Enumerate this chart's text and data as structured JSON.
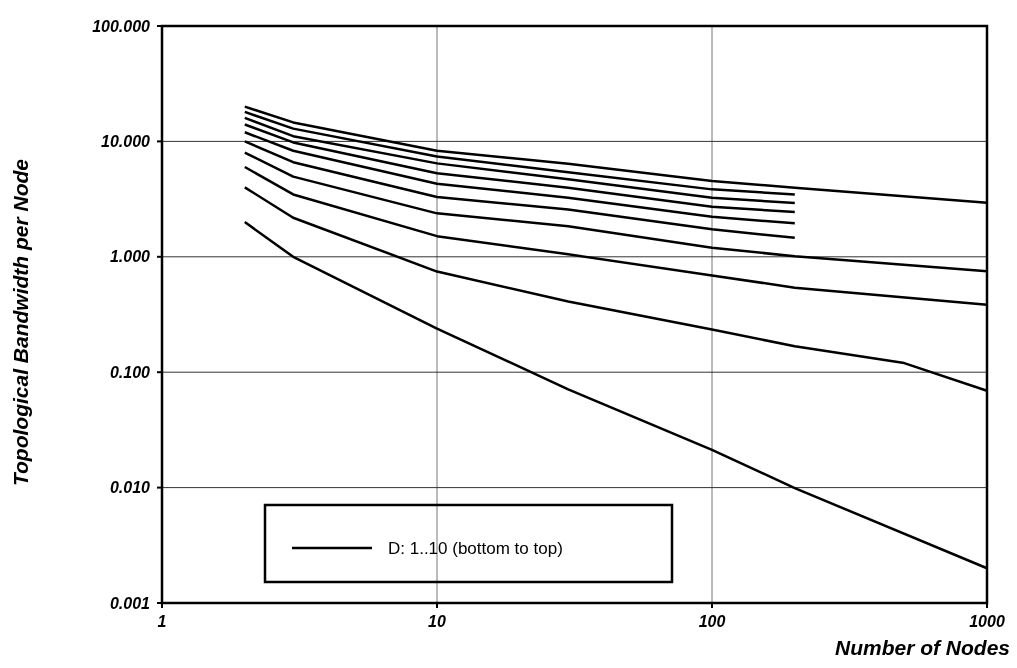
{
  "chart_data": {
    "type": "line",
    "xlabel": "Number of Nodes",
    "ylabel": "Topological Bandwidth per Node",
    "legend": "bottom left",
    "log": "xy",
    "grid": true,
    "line_style": "solid",
    "xlim": [
      1,
      1000
    ],
    "xticks": [
      1,
      10,
      100,
      1000
    ],
    "ylim": [
      0.001,
      100
    ],
    "yticks": [
      {
        "value": 0.001,
        "label": "0.001"
      },
      {
        "value": 0.01,
        "label": "0.010"
      },
      {
        "value": 0.1,
        "label": "0.100"
      },
      {
        "value": 1,
        "label": "1.000"
      },
      {
        "value": 10,
        "label": "10.000"
      },
      {
        "value": 100,
        "label": "100.000"
      }
    ],
    "series": [
      {
        "name": "D: 1..10 (bottom to top)",
        "color": "#000000",
        "x": [
          2,
          3,
          10,
          30,
          100,
          200,
          1000
        ],
        "values": [
          2,
          1.0,
          0.239,
          0.071,
          0.0212,
          0.0099,
          0.002
        ]
      },
      {
        "color": "#000000",
        "x": [
          2,
          3,
          10,
          30,
          100,
          200,
          500,
          1000
        ],
        "values": [
          4,
          2.18,
          0.745,
          0.41,
          0.234,
          0.168,
          0.12,
          0.069
        ]
      },
      {
        "color": "#000000",
        "x": [
          2,
          3,
          10,
          30,
          100,
          200,
          1000
        ],
        "values": [
          6,
          3.47,
          1.51,
          1.05,
          0.69,
          0.54,
          0.385
        ]
      },
      {
        "color": "#000000",
        "x": [
          2,
          3,
          10,
          30,
          100,
          200,
          1000
        ],
        "values": [
          8,
          4.95,
          2.38,
          1.84,
          1.2,
          1.01,
          0.75
        ]
      },
      {
        "color": "#000000",
        "x": [
          2,
          3,
          10,
          30,
          100,
          200
        ],
        "values": [
          10,
          6.6,
          3.3,
          2.57,
          1.73,
          1.46
        ]
      },
      {
        "color": "#000000",
        "x": [
          2,
          3,
          10,
          30,
          100,
          200
        ],
        "values": [
          12,
          8.3,
          4.3,
          3.25,
          2.22,
          1.95
        ]
      },
      {
        "color": "#000000",
        "x": [
          2,
          3,
          10,
          30,
          100,
          200
        ],
        "values": [
          14,
          9.8,
          5.3,
          3.97,
          2.72,
          2.44
        ]
      },
      {
        "color": "#000000",
        "x": [
          2,
          3,
          10,
          30,
          100,
          200
        ],
        "values": [
          16,
          11.1,
          6.45,
          4.7,
          3.25,
          2.92
        ]
      },
      {
        "color": "#000000",
        "x": [
          2,
          3,
          10,
          30,
          100,
          200
        ],
        "values": [
          18,
          12.9,
          7.4,
          5.4,
          3.84,
          3.47
        ]
      },
      {
        "color": "#000000",
        "x": [
          2,
          3,
          10,
          30,
          100,
          200,
          1000
        ],
        "values": [
          20,
          14.6,
          8.3,
          6.4,
          4.53,
          3.97,
          2.94
        ]
      }
    ]
  }
}
